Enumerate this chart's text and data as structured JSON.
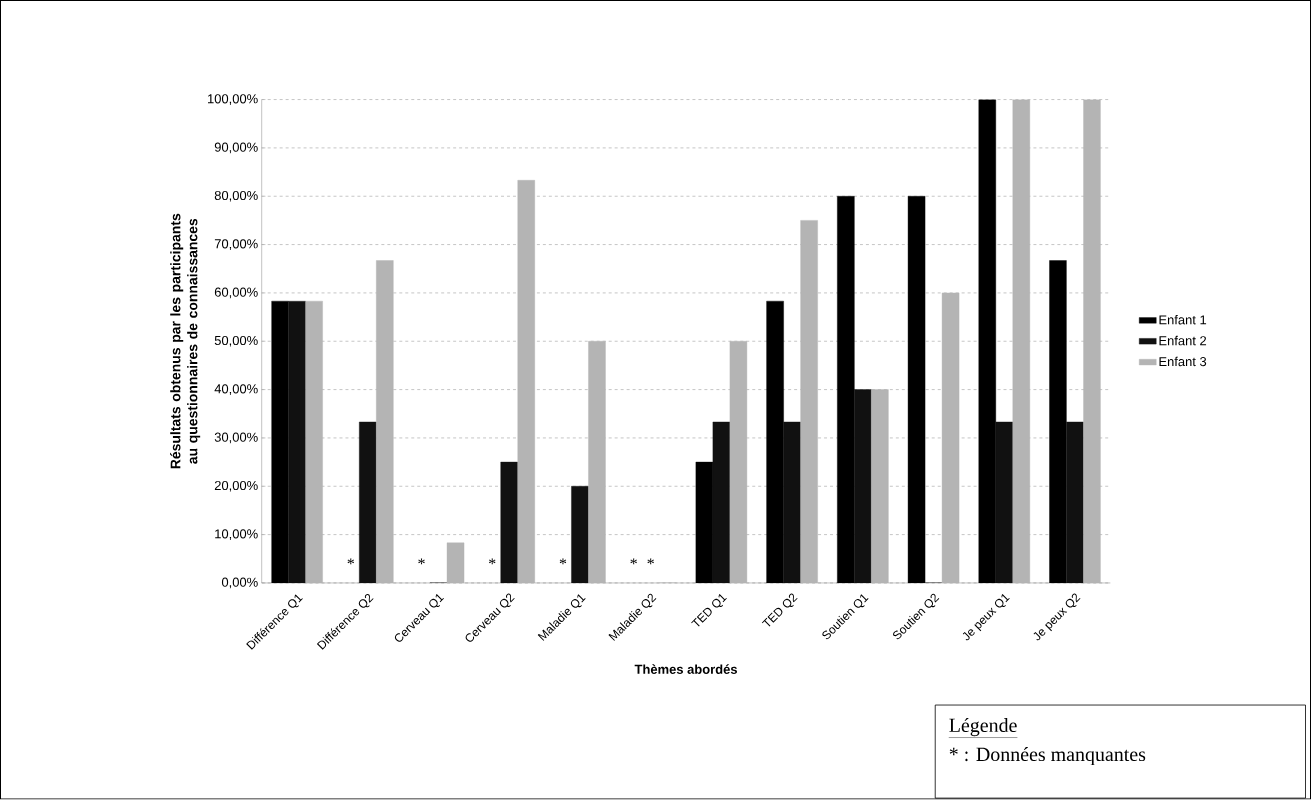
{
  "chart_data": {
    "type": "bar",
    "ylabel": "Résultats obtenus par les participants au questionnaires de connaissances",
    "xlabel": "Thèmes abordés",
    "categories": [
      "Différence Q1",
      "Différence Q2",
      "Cerveau Q1",
      "Cerveau Q2",
      "Maladie Q1",
      "Maladie Q2",
      "TED Q1",
      "TED Q2",
      "Soutien Q1",
      "Soutien Q2",
      "Je peux Q1",
      "Je peux Q2"
    ],
    "series": [
      {
        "name": "Enfant 1",
        "color": "#000000",
        "values": [
          58.3,
          null,
          null,
          null,
          null,
          null,
          25,
          58.3,
          80,
          80,
          100,
          66.7
        ]
      },
      {
        "name": "Enfant 2",
        "color": "#111111",
        "values": [
          58.3,
          33.3,
          0,
          25,
          20,
          null,
          33.3,
          33.3,
          40,
          0,
          33.3,
          33.3
        ]
      },
      {
        "name": "Enfant 3",
        "color": "#b4b4b4",
        "values": [
          58.3,
          66.7,
          8.3,
          83.3,
          50,
          0,
          50,
          75,
          40,
          60,
          100,
          100
        ]
      }
    ],
    "ylim": [
      0,
      100
    ],
    "yticks": [
      {
        "value": 0,
        "label": "0,00%"
      },
      {
        "value": 10,
        "label": "10,00%"
      },
      {
        "value": 20,
        "label": "20,00%"
      },
      {
        "value": 30,
        "label": "30,00%"
      },
      {
        "value": 40,
        "label": "40,00%"
      },
      {
        "value": 50,
        "label": "50,00%"
      },
      {
        "value": 60,
        "label": "60,00%"
      },
      {
        "value": 70,
        "label": "70,00%"
      },
      {
        "value": 80,
        "label": "80,00%"
      },
      {
        "value": 90,
        "label": "90,00%"
      },
      {
        "value": 100,
        "label": "100,00%"
      }
    ],
    "grid": "y",
    "legend": "right",
    "annotations": [
      "Légende",
      "* : Données manquantes",
      "*",
      "*",
      "*",
      "*",
      "*",
      "*"
    ]
  }
}
